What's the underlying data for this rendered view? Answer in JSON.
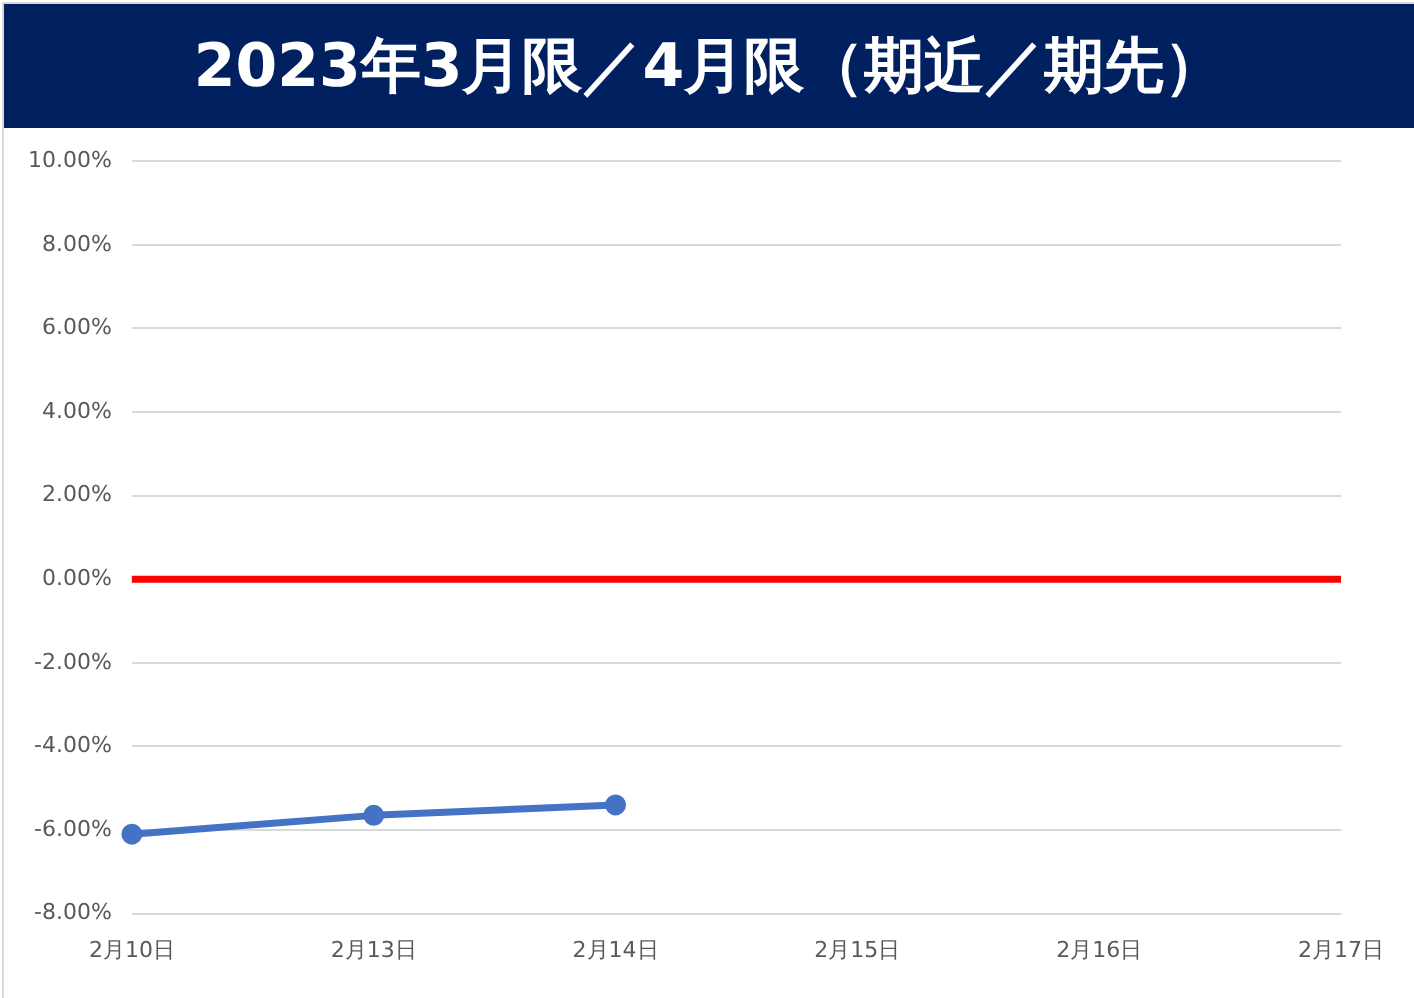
{
  "chart_data": {
    "type": "line",
    "title": "2023年3月限／4月限（期近／期先）",
    "categories": [
      "2月10日",
      "2月13日",
      "2月14日",
      "2月15日",
      "2月16日",
      "2月17日"
    ],
    "series": [
      {
        "color": "#4472c4",
        "values": [
          -6.1,
          -5.65,
          -5.4,
          null,
          null,
          null
        ]
      }
    ],
    "ylim": [
      -8,
      10
    ],
    "yticks": [
      {
        "value": -8,
        "label": "-8.00%"
      },
      {
        "value": -6,
        "label": "-6.00%"
      },
      {
        "value": -4,
        "label": "-4.00%"
      },
      {
        "value": -2,
        "label": "-2.00%"
      },
      {
        "value": 0,
        "label": "0.00%"
      },
      {
        "value": 2,
        "label": "2.00%"
      },
      {
        "value": 4,
        "label": "4.00%"
      },
      {
        "value": 6,
        "label": "6.00%"
      },
      {
        "value": 8,
        "label": "8.00%"
      },
      {
        "value": 10,
        "label": "10.00%"
      }
    ],
    "ref_lines": [
      {
        "axis": "y",
        "value": 0,
        "color": "#ff0000"
      }
    ],
    "grid": "y",
    "legend": false,
    "marker": "circle",
    "line_style": "solid"
  }
}
